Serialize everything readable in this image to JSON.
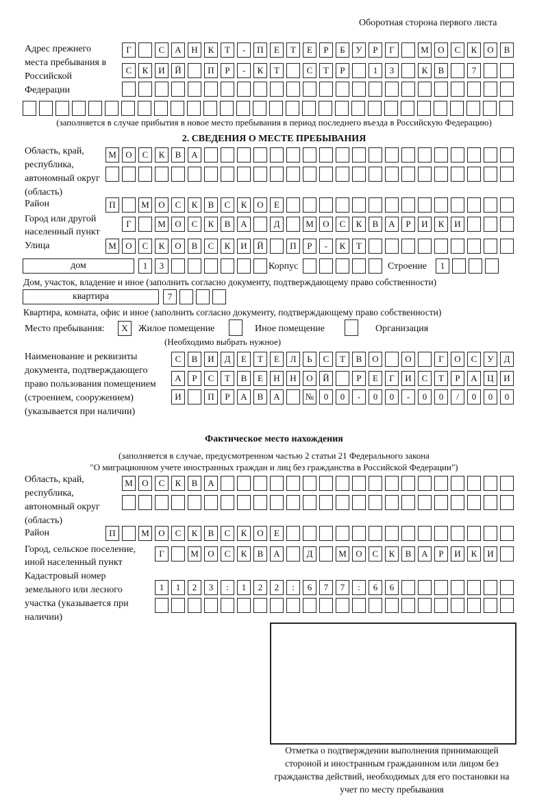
{
  "header": {
    "side_note": "Оборотная сторона первого листа"
  },
  "prev_address": {
    "label": "Адрес прежнего места пребывания в Российской Федерации",
    "rows": [
      [
        "Г",
        "",
        "С",
        "А",
        "Н",
        "К",
        "Т",
        "-",
        "П",
        "Е",
        "Т",
        "Е",
        "Р",
        "Б",
        "У",
        "Р",
        "Г",
        "",
        "М",
        "О",
        "С",
        "К",
        "О",
        "В"
      ],
      [
        "С",
        "К",
        "И",
        "Й",
        "",
        "П",
        "Р",
        "-",
        "К",
        "Т",
        "",
        "С",
        "Т",
        "Р",
        "",
        "1",
        "3",
        "",
        "К",
        "В",
        "",
        "7",
        "",
        ""
      ],
      [
        "",
        "",
        "",
        "",
        "",
        "",
        "",
        "",
        "",
        "",
        "",
        "",
        "",
        "",
        "",
        "",
        "",
        "",
        "",
        "",
        "",
        "",
        "",
        ""
      ],
      [
        "",
        "",
        "",
        "",
        "",
        "",
        "",
        "",
        "",
        "",
        "",
        "",
        "",
        "",
        "",
        "",
        "",
        "",
        "",
        "",
        "",
        "",
        "",
        "",
        "",
        "",
        "",
        "",
        "",
        ""
      ]
    ],
    "note": "(заполняется в случае прибытия в новое место пребывания в период последнего въезда в Российскую Федерацию)"
  },
  "section2": {
    "title": "2. СВЕДЕНИЯ О МЕСТЕ ПРЕБЫВАНИЯ",
    "region_label": "Область, край, республика, автономный округ (область)",
    "region_rows": [
      [
        "М",
        "О",
        "С",
        "К",
        "В",
        "А",
        "",
        "",
        "",
        "",
        "",
        "",
        "",
        "",
        "",
        "",
        "",
        "",
        "",
        "",
        "",
        "",
        "",
        "",
        ""
      ],
      [
        "",
        "",
        "",
        "",
        "",
        "",
        "",
        "",
        "",
        "",
        "",
        "",
        "",
        "",
        "",
        "",
        "",
        "",
        "",
        "",
        "",
        "",
        "",
        "",
        ""
      ]
    ],
    "district_label": "Район",
    "district": [
      "П",
      "",
      "М",
      "О",
      "С",
      "К",
      "В",
      "С",
      "К",
      "О",
      "Е",
      "",
      "",
      "",
      "",
      "",
      "",
      "",
      "",
      "",
      "",
      "",
      "",
      "",
      ""
    ],
    "city_label": "Город или другой населенный пункт",
    "city": [
      "Г",
      "",
      "М",
      "О",
      "С",
      "К",
      "В",
      "А",
      "",
      "Д",
      "",
      "М",
      "О",
      "С",
      "К",
      "В",
      "А",
      "Р",
      "И",
      "К",
      "И",
      "",
      "",
      ""
    ],
    "street_label": "Улица",
    "street": [
      "М",
      "О",
      "С",
      "К",
      "О",
      "В",
      "С",
      "К",
      "И",
      "Й",
      "",
      "П",
      "Р",
      "-",
      "К",
      "Т",
      "",
      "",
      "",
      "",
      "",
      "",
      "",
      "",
      ""
    ],
    "house_type": "дом",
    "house": [
      "1",
      "3",
      "",
      "",
      "",
      "",
      "",
      ""
    ],
    "korpus_label": "Корпус",
    "korpus": [
      "",
      "",
      "",
      "",
      ""
    ],
    "building_label": "Строение",
    "building": [
      "1",
      "",
      "",
      ""
    ],
    "house_note": "Дом, участок, владение и иное (заполнить согласно документу, подтверждающему право собственности)",
    "flat_type": "квартира",
    "flat": [
      "7",
      "",
      "",
      ""
    ],
    "flat_note": "Квартира, комната, офис и иное (заполнить согласно документу, подтверждающему право собственности)",
    "stay_label": "Место пребывания:",
    "stay_options": [
      {
        "label": "Жилое помещение",
        "mark": "X"
      },
      {
        "label": "Иное помещение",
        "mark": ""
      },
      {
        "label": "Организация",
        "mark": ""
      }
    ],
    "stay_note": "(Необходимо выбрать нужное)",
    "doc_label": "Наименование и реквизиты документа, подтверждающего право пользования помещением (строением, сооружением) (указывается при наличии)",
    "doc_rows": [
      [
        "С",
        "В",
        "И",
        "Д",
        "Е",
        "Т",
        "Е",
        "Л",
        "Ь",
        "С",
        "Т",
        "В",
        "О",
        "",
        "О",
        "",
        "Г",
        "О",
        "С",
        "У",
        "Д"
      ],
      [
        "А",
        "Р",
        "С",
        "Т",
        "В",
        "Е",
        "Н",
        "Н",
        "О",
        "Й",
        "",
        "Р",
        "Е",
        "Г",
        "И",
        "С",
        "Т",
        "Р",
        "А",
        "Ц",
        "И"
      ],
      [
        "И",
        "",
        "П",
        "Р",
        "А",
        "В",
        "А",
        "",
        "№",
        "0",
        "0",
        "-",
        "0",
        "0",
        "-",
        "0",
        "0",
        "/",
        "0",
        "0",
        "0"
      ]
    ]
  },
  "actual": {
    "title": "Фактическое место нахождения",
    "note1": "(заполняется в случае, предусмотренном частью 2 статьи 21 Федерального закона",
    "note2": "\"О миграционном учете иностранных граждан и лиц без гражданства в Российской Федерации\")",
    "region_label": "Область, край, республика, автономный округ (область)",
    "region_rows": [
      [
        "М",
        "О",
        "С",
        "К",
        "В",
        "А",
        "",
        "",
        "",
        "",
        "",
        "",
        "",
        "",
        "",
        "",
        "",
        "",
        "",
        "",
        "",
        "",
        "",
        ""
      ],
      [
        "",
        "",
        "",
        "",
        "",
        "",
        "",
        "",
        "",
        "",
        "",
        "",
        "",
        "",
        "",
        "",
        "",
        "",
        "",
        "",
        "",
        "",
        "",
        ""
      ]
    ],
    "district_label": "Район",
    "district": [
      "П",
      "",
      "М",
      "О",
      "С",
      "К",
      "В",
      "С",
      "К",
      "О",
      "Е",
      "",
      "",
      "",
      "",
      "",
      "",
      "",
      "",
      "",
      "",
      "",
      "",
      "",
      ""
    ],
    "city_label": "Город, сельское поселение, иной населенный пункт",
    "city": [
      "Г",
      "",
      "М",
      "О",
      "С",
      "К",
      "В",
      "А",
      "",
      "Д",
      "",
      "М",
      "О",
      "С",
      "К",
      "В",
      "А",
      "Р",
      "И",
      "К",
      "И",
      ""
    ],
    "cadastral_label": "Кадастровый номер земельного или лесного участка (указывается при наличии)",
    "cadastral_rows": [
      [
        "1",
        "1",
        "2",
        "3",
        ":",
        "1",
        "2",
        "2",
        ":",
        "6",
        "7",
        "7",
        ":",
        "6",
        "6",
        "",
        "",
        "",
        "",
        "",
        "",
        ""
      ],
      [
        "",
        "",
        "",
        "",
        "",
        "",
        "",
        "",
        "",
        "",
        "",
        "",
        "",
        "",
        "",
        "",
        "",
        "",
        "",
        "",
        "",
        ""
      ]
    ]
  },
  "confirmation": {
    "caption": "Отметка о подтверждении выполнения принимающей стороной и иностранным гражданином или лицом без гражданства действий, необходимых для его постановки на учет по месту пребывания"
  }
}
